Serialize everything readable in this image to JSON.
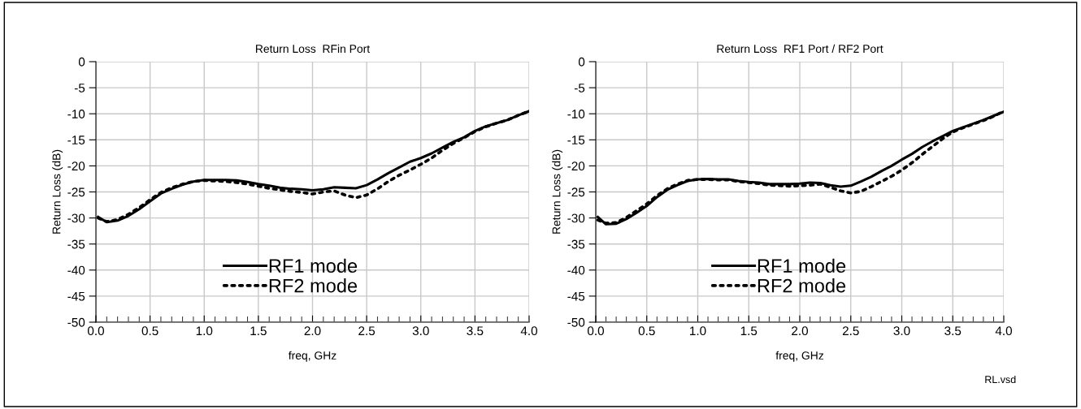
{
  "chart_data": [
    {
      "type": "line",
      "title": "Return Loss  RFin Port",
      "xlabel": "freq, GHz",
      "ylabel": "Return Loss (dB)",
      "xlim": [
        0,
        4
      ],
      "ylim": [
        -50,
        0
      ],
      "xticks": [
        {
          "value": 0,
          "label": "0.0"
        },
        0.5,
        {
          "value": 1,
          "label": "1.0"
        },
        1.5,
        {
          "value": 2,
          "label": "2.0"
        },
        2.5,
        {
          "value": 3,
          "label": "3.0"
        },
        3.5,
        {
          "value": 4,
          "label": "4.0"
        }
      ],
      "yticks": [
        -50,
        -45,
        -40,
        -35,
        -30,
        -25,
        -20,
        -15,
        -10,
        -5,
        0
      ],
      "grid": true,
      "legend": "bottom",
      "marker": "none",
      "x": [
        0.02,
        0.1,
        0.2,
        0.3,
        0.4,
        0.5,
        0.6,
        0.7,
        0.8,
        0.9,
        1.0,
        1.1,
        1.2,
        1.3,
        1.4,
        1.5,
        1.6,
        1.7,
        1.8,
        1.9,
        2.0,
        2.1,
        2.2,
        2.3,
        2.4,
        2.5,
        2.6,
        2.7,
        2.8,
        2.9,
        3.0,
        3.1,
        3.2,
        3.3,
        3.4,
        3.5,
        3.6,
        3.7,
        3.8,
        3.9,
        4.0
      ],
      "series": [
        {
          "name": "RF1 mode",
          "color": "#000000",
          "line_style": "solid",
          "values": [
            -29.8,
            -30.8,
            -30.5,
            -29.6,
            -28.3,
            -26.8,
            -25.3,
            -24.4,
            -23.6,
            -23.0,
            -22.7,
            -22.7,
            -22.7,
            -22.8,
            -23.1,
            -23.5,
            -23.8,
            -24.2,
            -24.4,
            -24.5,
            -24.7,
            -24.5,
            -24.1,
            -24.2,
            -24.3,
            -23.7,
            -22.6,
            -21.4,
            -20.3,
            -19.2,
            -18.5,
            -17.6,
            -16.5,
            -15.4,
            -14.5,
            -13.3,
            -12.4,
            -11.8,
            -11.2,
            -10.3,
            -9.5
          ]
        },
        {
          "name": "RF2 mode",
          "color": "#000000",
          "line_style": "dotted",
          "values": [
            -30.0,
            -30.7,
            -30.3,
            -29.3,
            -28.0,
            -26.5,
            -25.1,
            -24.2,
            -23.5,
            -23.0,
            -22.8,
            -22.9,
            -23.0,
            -23.2,
            -23.5,
            -23.9,
            -24.3,
            -24.6,
            -24.9,
            -25.1,
            -25.4,
            -25.0,
            -24.8,
            -25.6,
            -26.1,
            -25.6,
            -24.4,
            -23.0,
            -21.8,
            -20.8,
            -19.7,
            -18.5,
            -17.0,
            -15.7,
            -14.6,
            -13.4,
            -12.5,
            -11.8,
            -11.2,
            -10.3,
            -9.5
          ]
        }
      ]
    },
    {
      "type": "line",
      "title": "Return Loss  RF1 Port / RF2 Port",
      "xlabel": "freq, GHz",
      "ylabel": "Return Loss (dB)",
      "xlim": [
        0,
        4
      ],
      "ylim": [
        -50,
        0
      ],
      "xticks": [
        {
          "value": 0,
          "label": "0.0"
        },
        0.5,
        {
          "value": 1,
          "label": "1.0"
        },
        1.5,
        {
          "value": 2,
          "label": "2.0"
        },
        2.5,
        {
          "value": 3,
          "label": "3.0"
        },
        3.5,
        {
          "value": 4,
          "label": "4.0"
        }
      ],
      "yticks": [
        -50,
        -45,
        -40,
        -35,
        -30,
        -25,
        -20,
        -15,
        -10,
        -5,
        0
      ],
      "grid": true,
      "legend": "bottom",
      "marker": "none",
      "annotations": [
        "RL.vsd"
      ],
      "x": [
        0.02,
        0.1,
        0.2,
        0.3,
        0.4,
        0.5,
        0.6,
        0.7,
        0.8,
        0.9,
        1.0,
        1.1,
        1.2,
        1.3,
        1.4,
        1.5,
        1.6,
        1.7,
        1.8,
        1.9,
        2.0,
        2.1,
        2.2,
        2.3,
        2.4,
        2.5,
        2.6,
        2.7,
        2.8,
        2.9,
        3.0,
        3.1,
        3.2,
        3.3,
        3.4,
        3.5,
        3.6,
        3.7,
        3.8,
        3.9,
        4.0
      ],
      "series": [
        {
          "name": "RF1 mode",
          "color": "#000000",
          "line_style": "solid",
          "values": [
            -29.8,
            -31.2,
            -31.1,
            -30.2,
            -29.0,
            -27.7,
            -26.0,
            -24.6,
            -23.7,
            -22.9,
            -22.6,
            -22.5,
            -22.6,
            -22.6,
            -22.9,
            -23.1,
            -23.2,
            -23.5,
            -23.5,
            -23.5,
            -23.4,
            -23.2,
            -23.3,
            -23.7,
            -24.0,
            -23.8,
            -23.0,
            -22.1,
            -21.0,
            -20.0,
            -18.8,
            -17.7,
            -16.4,
            -15.3,
            -14.3,
            -13.3,
            -12.6,
            -11.9,
            -11.2,
            -10.4,
            -9.6
          ]
        },
        {
          "name": "RF2 mode",
          "color": "#000000",
          "line_style": "dotted",
          "values": [
            -30.4,
            -31.0,
            -30.9,
            -29.9,
            -28.6,
            -27.3,
            -25.7,
            -24.4,
            -23.5,
            -22.8,
            -22.6,
            -22.6,
            -22.7,
            -22.7,
            -23.0,
            -23.2,
            -23.4,
            -23.7,
            -23.8,
            -23.9,
            -23.8,
            -23.7,
            -23.5,
            -24.1,
            -24.8,
            -25.2,
            -24.9,
            -24.0,
            -23.0,
            -22.0,
            -20.8,
            -19.4,
            -17.8,
            -16.3,
            -14.8,
            -13.5,
            -12.7,
            -12.0,
            -11.3,
            -10.5,
            -9.5
          ]
        }
      ]
    }
  ]
}
